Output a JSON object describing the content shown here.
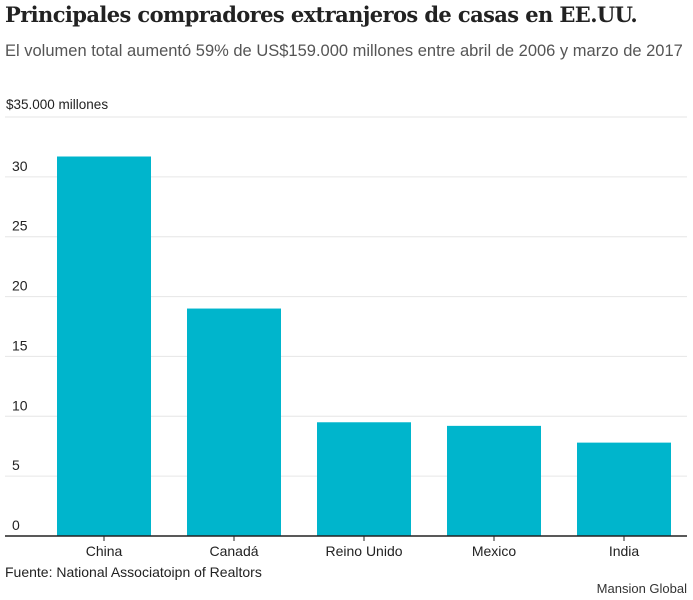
{
  "title": "Principales compradores extranjeros de casas en EE.UU.",
  "subtitle": "El volumen total aumentó 59% de US$159.000 millones entre abril de 2006 y marzo de 2017",
  "source": "Fuente: National Associatoipn of Realtors",
  "credit": "Mansion Global",
  "chart_data": {
    "type": "bar",
    "categories": [
      "China",
      "Canadá",
      "Reino Unido",
      "Mexico",
      "India"
    ],
    "values": [
      31.7,
      19.0,
      9.5,
      9.2,
      7.8
    ],
    "unit_label": "$35.000 millones",
    "yticks": [
      0,
      5,
      10,
      15,
      20,
      25,
      30
    ],
    "ylim": [
      0,
      35
    ],
    "bar_color": "#00b5cc",
    "grid": true,
    "legend": false
  }
}
